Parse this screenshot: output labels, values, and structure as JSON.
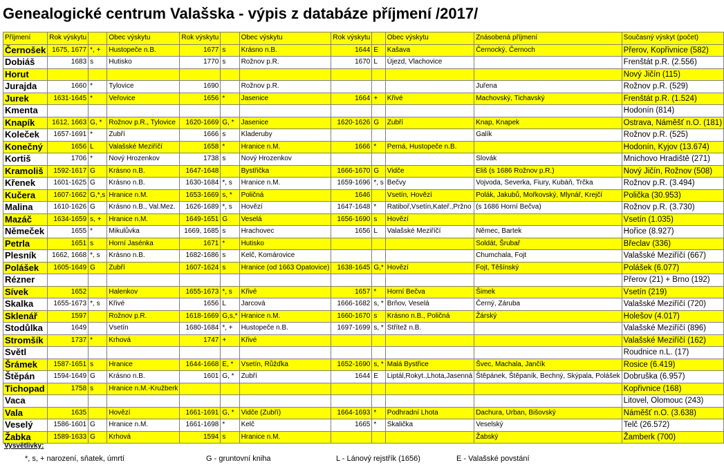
{
  "title": "Genealogické centrum Valašska - výpis z databáze příjmení /2017/",
  "headers": [
    "Příjmení",
    "Rok výskytu",
    "",
    "Obec výskytu",
    "Rok výskytu",
    "",
    "Obec výskytu",
    "Rok výskytu",
    "",
    "Obec výskytu",
    "Znásobená příjmení",
    "Současný výskyt (počet)"
  ],
  "rows": [
    [
      "Černošek",
      "1675, 1677",
      "*, +",
      "Hustopeče n.B.",
      "1677",
      "s",
      "Krásno n.B.",
      "1644",
      "E",
      "Kašava",
      "Černocký, Černoch",
      "Přerov, Kopřivnice (582)"
    ],
    [
      "Dobiáš",
      "1683",
      "s",
      "Hutisko",
      "1770",
      "s",
      "Rožnov p.R.",
      "1670",
      "L",
      "Újezd, Vlachovice",
      "",
      "Frenštát p.R. (2.556)"
    ],
    [
      "Horut",
      "",
      "",
      "",
      "",
      "",
      "",
      "",
      "",
      "",
      "",
      "Nový Jičín (115)"
    ],
    [
      "Jurajda",
      "1660",
      "*",
      "Tylovice",
      "1690",
      "",
      "Rožnov p.R.",
      "",
      "",
      "",
      "Juřena",
      "Rožnov p.R. (529)"
    ],
    [
      "Jurek",
      "1631-1645",
      "*",
      "Veřovice",
      "1656",
      "*",
      "Jasenice",
      "1664",
      "+",
      "Křivé",
      "Machovský, Tichavský",
      "Frenštát p.R. (1.524)"
    ],
    [
      "Kmenta",
      "",
      "",
      "",
      "",
      "",
      "",
      "",
      "",
      "",
      "",
      "Hodonín (814)"
    ],
    [
      "Knapík",
      "1612, 1663",
      "G, *",
      "Rožnov p.R., Tylovice",
      "1620-1669",
      "G, *",
      "Jasenice",
      "1620-1626",
      "G",
      "Zubří",
      "Knap, Knapek",
      "Ostrava, Náměšť n.O. (181)"
    ],
    [
      "Koleček",
      "1657-1691",
      "*",
      "Zubří",
      "1666",
      "s",
      "Kladeruby",
      "",
      "",
      "",
      "Galík",
      "Rožnov p.R. (525)"
    ],
    [
      "Konečný",
      "1656",
      "L",
      "Valašské Meziříčí",
      "1658",
      "*",
      "Hranice n.M.",
      "1666",
      "*",
      "Perná, Hustopeče n.B.",
      "",
      "Hodonín, Kyjov (13.674)"
    ],
    [
      "Kortiš",
      "1706",
      "*",
      "Nový Hrozenkov",
      "1738",
      "s",
      "Nový Hrozenkov",
      "",
      "",
      "",
      "Slovák",
      "Mnichovo Hradiště (271)"
    ],
    [
      "Kramoliš",
      "1592-1617",
      "G",
      "Krásno n.B.",
      "1647-1648",
      "",
      "Bystřička",
      "1666-1670",
      "G",
      "Vidče",
      "Eliš (s 1686 Rožnov p.R.)",
      "Nový Jičín, Rožnov (508)"
    ],
    [
      "Křenek",
      "1601-1625",
      "G",
      "Krásno n.B.",
      "1630-1684",
      "*, s",
      "Hranice n.M.",
      "1659-1696",
      "*, s",
      "Bečvy",
      "Vojvoda, Severka, Fiury, Kubáň, Trčka",
      "Rožnov p.R. (3.494)"
    ],
    [
      "Kučera",
      "1607-1662",
      "G,*,s",
      "Hranice n.M.",
      "1653-1669",
      "s, *",
      "Poličná",
      "1646",
      "",
      "Vsetín, Hovězí",
      "Polák, Jakubů, Mořkovský, Mlynář, Krejčí",
      "Polička (30.953)"
    ],
    [
      "Malina",
      "1610-1626",
      "G",
      "Krásno n.B., Val.Mez.",
      "1626-1689",
      "*, s",
      "Hovězí",
      "1647-1648",
      "*",
      "Ratiboř,Vsetín,Kateř.,Pržno",
      "(s 1686 Horní Bečva)",
      "Rožnov p.R. (3.730)"
    ],
    [
      "Mazáč",
      "1634-1659",
      "s, +",
      "Hranice n.M.",
      "1649-1651",
      "G",
      "Veselá",
      "1656-1690",
      "s",
      "Hovězí",
      "",
      "Vsetín (1.035)"
    ],
    [
      "Němeček",
      "1655",
      "*",
      "Mikulůvka",
      "1669, 1685",
      "s",
      "Hrachovec",
      "1656",
      "L",
      "Valašské Meziříčí",
      "Němec, Bartek",
      "Hořice (8.927)"
    ],
    [
      "Petrla",
      "1651",
      "s",
      "Horní Jasénka",
      "1671",
      "*",
      "Hutisko",
      "",
      "",
      "",
      "Soldát, Šrubař",
      "Břeclav (336)"
    ],
    [
      "Plesník",
      "1662, 1668",
      "*, s",
      "Krásno n.B.",
      "1682-1686",
      "s",
      "Kelč, Komárovice",
      "",
      "",
      "",
      "Chumchala, Fojt",
      "Valašské Meziříčí (667)"
    ],
    [
      "Polášek",
      "1605-1649",
      "G",
      "Zubří",
      "1607-1624",
      "s",
      "Hranice (od 1663 Opatovice)",
      "1638-1645",
      "G,*",
      "Hovězí",
      "Fojt, Těšínský",
      "Polášek (6.077)"
    ],
    [
      "Rézner",
      "",
      "",
      "",
      "",
      "",
      "",
      "",
      "",
      "",
      "",
      "Přerov (21) + Brno (192)"
    ],
    [
      "Sívek",
      "1652",
      "",
      "Halenkov",
      "1655-1673",
      "*, s",
      "Křivé",
      "1657",
      "*",
      "Horní Bečva",
      "Šimek",
      "Vsetín (219)"
    ],
    [
      "Skalka",
      "1655-1673",
      "*, s",
      "Křivé",
      "1656",
      "L",
      "Jarcová",
      "1666-1682",
      "s, *",
      "Brňov, Veselá",
      "Černý, Záruba",
      "Valašské Meziříčí (720)"
    ],
    [
      "Sklenář",
      "1597",
      "",
      "Rožnov p.R.",
      "1618-1669",
      "G,s,*",
      "Hranice n.M.",
      "1660-1670",
      "s",
      "Krásno n.B., Poličná",
      "Žárský",
      "Holešov (4.017)"
    ],
    [
      "Stodůlka",
      "1649",
      "",
      "Vsetín",
      "1680-1684",
      "*, +",
      "Hustopeče n.B.",
      "1697-1699",
      "s, *",
      "Střítež n.B.",
      "",
      "Valašské Meziříčí (896)"
    ],
    [
      "Stromšík",
      "1737",
      "*",
      "Krhová",
      "1747",
      "+",
      "Křivé",
      "",
      "",
      "",
      "",
      "Valašské Meziříčí (162)"
    ],
    [
      "Světl",
      "",
      "",
      "",
      "",
      "",
      "",
      "",
      "",
      "",
      "",
      "Roudnice n.L. (17)"
    ],
    [
      "Šrámek",
      "1587-1651",
      "s",
      "Hranice",
      "1644-1668",
      "E, *",
      "Vsetín, Růžďka",
      "1652-1690",
      "s, *",
      "Malá Bystřice",
      "Švec, Machala, Jančík",
      "Rosice (6.419)"
    ],
    [
      "Štěpán",
      "1594-1649",
      "G",
      "Krásno n.B.",
      "1601",
      "G, *",
      "Zubří",
      "1644",
      "E",
      "Liptál,Rokyt.,Lhota,Jasenná",
      "Štěpánek, Štěpaník, Bechný, Skýpala, Polášek",
      "Dobruška (6.957)"
    ],
    [
      "Tichopad",
      "1758",
      "s",
      "Hranice n.M.-Kružberk",
      "",
      "",
      "",
      "",
      "",
      "",
      "",
      "Kopřivnice (168)"
    ],
    [
      "Vaca",
      "",
      "",
      "",
      "",
      "",
      "",
      "",
      "",
      "",
      "",
      "Litovel, Olomouc (243)"
    ],
    [
      "Vala",
      "1635",
      "",
      "Hovězí",
      "1661-1691",
      "G, *",
      "Vidče (Zubří)",
      "1664-1693",
      "*",
      "Podhradní Lhota",
      "Dachura, Urban, Bišovský",
      "Náměšť n.O. (3.638)"
    ],
    [
      "Veselý",
      "1586-1601",
      "G",
      "Hranice n.M.",
      "1661-1698",
      "*",
      "Kelč",
      "1665",
      "*",
      "Skalička",
      "Veselský",
      "Telč (26.572)"
    ],
    [
      "Žabka",
      "1589-1633",
      "G",
      "Krhová",
      "1594",
      "s",
      "Hranice n.M.",
      "",
      "",
      "",
      "Žabský",
      "Žamberk (700)"
    ]
  ],
  "row_colors": [
    "y",
    "w",
    "y",
    "w",
    "y",
    "w",
    "y",
    "w",
    "y",
    "w",
    "y",
    "w",
    "y",
    "w",
    "y",
    "w",
    "y",
    "w",
    "y",
    "w",
    "y",
    "w",
    "y",
    "w",
    "y",
    "w",
    "y",
    "w",
    "y",
    "w",
    "y",
    "w",
    "y"
  ],
  "legend": {
    "title": "Vysvětlivky:",
    "item1": "*, s, +  narození, sňatek, úmrtí",
    "item2": "G -   gruntovní kniha",
    "item3": "L -  Lánový rejstřík (1656)",
    "item4": "E - Valašské povstání"
  }
}
